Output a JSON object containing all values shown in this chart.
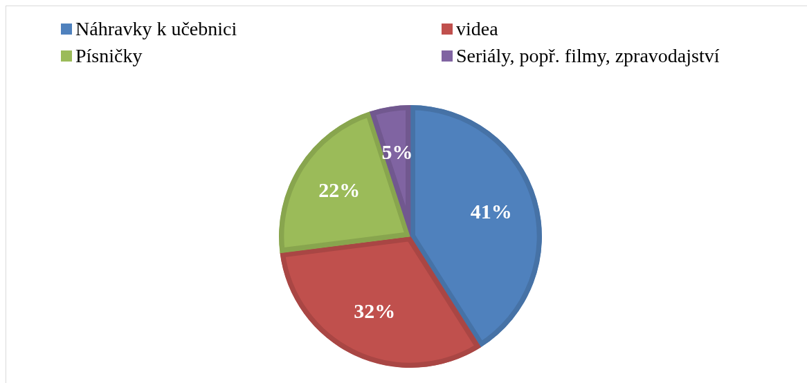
{
  "chart_data": {
    "type": "pie",
    "categories": [
      "Náhravky k učebnici",
      "videa",
      "Písničky",
      "Seriály, popř. filmy, zpravodajství"
    ],
    "values": [
      41,
      32,
      22,
      5
    ],
    "colors": [
      "#4f81bd",
      "#c0504d",
      "#9bbb59",
      "#8064a2"
    ],
    "value_labels": [
      "41%",
      "32%",
      "22%",
      "5%"
    ],
    "legend": "top"
  }
}
